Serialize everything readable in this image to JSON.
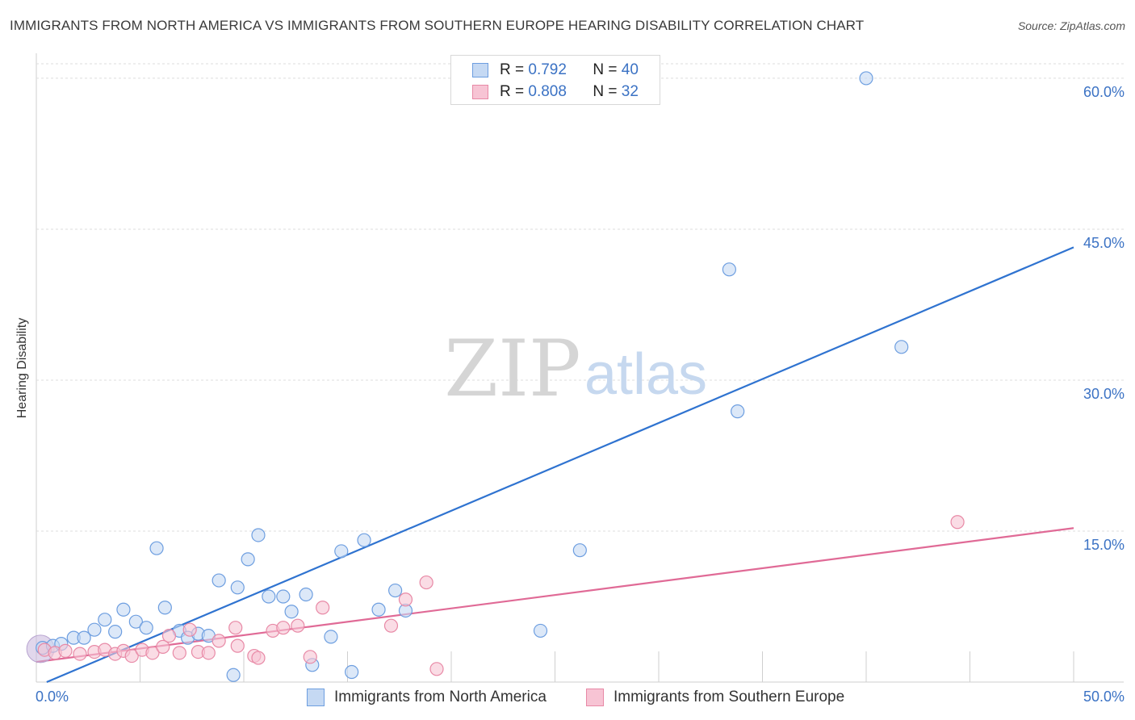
{
  "title": "IMMIGRANTS FROM NORTH AMERICA VS IMMIGRANTS FROM SOUTHERN EUROPE HEARING DISABILITY CORRELATION CHART",
  "source": "Source: ZipAtlas.com",
  "watermark": {
    "zip": "ZIP",
    "atlas": "atlas"
  },
  "legend": {
    "r_label": "R =",
    "n_label": "N =",
    "rows": [
      {
        "r": "0.792",
        "n": "40"
      },
      {
        "r": "0.808",
        "n": "32"
      }
    ]
  },
  "chart_data": {
    "type": "scatter",
    "title": "IMMIGRANTS FROM NORTH AMERICA VS IMMIGRANTS FROM SOUTHERN EUROPE HEARING DISABILITY CORRELATION CHART",
    "xlabel": "",
    "ylabel": "Hearing Disability",
    "xlim": [
      0,
      50
    ],
    "ylim": [
      0,
      62
    ],
    "x_tick_labels": [
      "0.0%",
      "50.0%"
    ],
    "y_ticks": [
      15,
      30,
      45,
      60
    ],
    "y_tick_labels": [
      "15.0%",
      "30.0%",
      "45.0%",
      "60.0%"
    ],
    "grid": true,
    "series": [
      {
        "name": "Immigrants from North America",
        "color": "#6d9ee0",
        "fill": "#c5d9f3",
        "line_color": "#2f73d0",
        "trend": [
          [
            0.5,
            0.0
          ],
          [
            50.0,
            43.2
          ]
        ],
        "points": [
          [
            0.3,
            3.4
          ],
          [
            0.8,
            3.6
          ],
          [
            1.2,
            3.8
          ],
          [
            1.8,
            4.4
          ],
          [
            2.3,
            4.4
          ],
          [
            2.8,
            5.2
          ],
          [
            3.3,
            6.2
          ],
          [
            3.8,
            5.0
          ],
          [
            4.2,
            7.2
          ],
          [
            4.8,
            6.0
          ],
          [
            5.3,
            5.4
          ],
          [
            5.8,
            13.3
          ],
          [
            6.2,
            7.4
          ],
          [
            6.9,
            5.1
          ],
          [
            7.3,
            4.4
          ],
          [
            7.8,
            4.8
          ],
          [
            8.3,
            4.6
          ],
          [
            8.8,
            10.1
          ],
          [
            9.5,
            0.7
          ],
          [
            9.7,
            9.4
          ],
          [
            10.2,
            12.2
          ],
          [
            10.7,
            14.6
          ],
          [
            11.2,
            8.5
          ],
          [
            11.9,
            8.5
          ],
          [
            12.3,
            7.0
          ],
          [
            13.0,
            8.7
          ],
          [
            13.3,
            1.7
          ],
          [
            14.2,
            4.5
          ],
          [
            14.7,
            13.0
          ],
          [
            15.2,
            1.0
          ],
          [
            15.8,
            14.1
          ],
          [
            16.5,
            7.2
          ],
          [
            17.3,
            9.1
          ],
          [
            17.8,
            7.1
          ],
          [
            24.3,
            5.1
          ],
          [
            26.2,
            13.1
          ],
          [
            33.4,
            41.0
          ],
          [
            33.8,
            26.9
          ],
          [
            40.0,
            60.0
          ],
          [
            41.7,
            33.3
          ]
        ]
      },
      {
        "name": "Immigrants from Southern Europe",
        "color": "#e889a6",
        "fill": "#f7c4d4",
        "line_color": "#e06a96",
        "trend": [
          [
            0.0,
            2.0
          ],
          [
            50.0,
            15.3
          ]
        ],
        "points": [
          [
            0.4,
            3.2
          ],
          [
            0.9,
            2.9
          ],
          [
            1.4,
            3.1
          ],
          [
            2.1,
            2.8
          ],
          [
            2.8,
            3.0
          ],
          [
            3.3,
            3.2
          ],
          [
            3.8,
            2.8
          ],
          [
            4.2,
            3.1
          ],
          [
            4.6,
            2.6
          ],
          [
            5.1,
            3.2
          ],
          [
            5.6,
            2.9
          ],
          [
            6.1,
            3.5
          ],
          [
            6.4,
            4.6
          ],
          [
            6.9,
            2.9
          ],
          [
            7.4,
            5.2
          ],
          [
            7.8,
            3.0
          ],
          [
            8.3,
            2.9
          ],
          [
            8.8,
            4.1
          ],
          [
            9.6,
            5.4
          ],
          [
            9.7,
            3.6
          ],
          [
            10.5,
            2.6
          ],
          [
            10.7,
            2.4
          ],
          [
            11.4,
            5.1
          ],
          [
            11.9,
            5.4
          ],
          [
            12.6,
            5.6
          ],
          [
            13.2,
            2.5
          ],
          [
            13.8,
            7.4
          ],
          [
            17.1,
            5.6
          ],
          [
            17.8,
            8.2
          ],
          [
            18.8,
            9.9
          ],
          [
            19.3,
            1.3
          ],
          [
            44.4,
            15.9
          ]
        ]
      }
    ]
  }
}
